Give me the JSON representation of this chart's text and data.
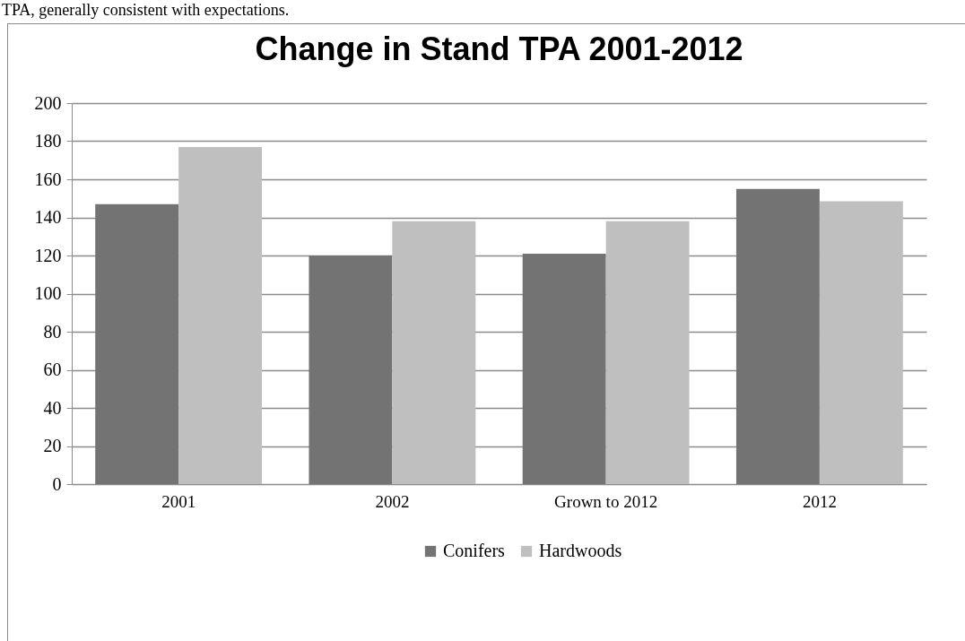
{
  "chart_data": {
    "type": "bar",
    "title": "Change in Stand TPA 2001-2012",
    "annotations": [
      "TPA, generally consistent with expectations."
    ],
    "categories": [
      "2001",
      "2002",
      "Grown to 2012",
      "2012"
    ],
    "series": [
      {
        "name": "Conifers",
        "color": "#737373",
        "values": [
          147,
          120,
          121,
          155
        ]
      },
      {
        "name": "Hardwoods",
        "color": "#bfbfbf",
        "values": [
          177,
          138,
          138,
          148.5
        ]
      }
    ],
    "ylim": [
      0,
      200
    ],
    "yticks": [
      0,
      20,
      40,
      60,
      80,
      100,
      120,
      140,
      160,
      180,
      200
    ],
    "grid": "y",
    "legend": "bottom"
  }
}
